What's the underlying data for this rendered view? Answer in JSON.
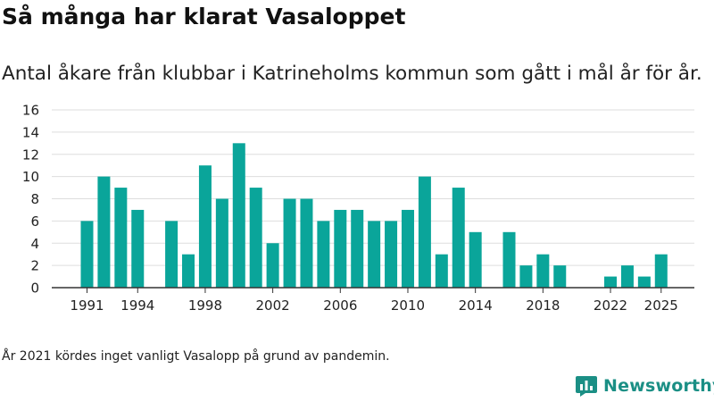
{
  "header": {
    "title": "Så många har klarat Vasaloppet",
    "subtitle": "Antal åkare från klubbar i Katrineholms kommun som gått i mål år för år."
  },
  "footer": {
    "note": "År 2021 kördes inget vanligt Vasalopp på grund av pandemin.",
    "brand": "Newsworthy",
    "brand_icon": "bar-chart-logo-icon"
  },
  "colors": {
    "bar": "#0aa59a",
    "grid": "#dddddd",
    "axis": "#333333",
    "brand": "#1b8f85"
  },
  "chart_data": {
    "type": "bar",
    "title": "Så många har klarat Vasaloppet",
    "xlabel": "",
    "ylabel": "",
    "ylim": [
      0,
      16
    ],
    "yticks": [
      0,
      2,
      4,
      6,
      8,
      10,
      12,
      14,
      16
    ],
    "xticks": [
      1991,
      1994,
      1998,
      2002,
      2006,
      2010,
      2014,
      2018,
      2022,
      2025
    ],
    "grid": true,
    "categories": [
      1991,
      1992,
      1993,
      1994,
      1995,
      1996,
      1997,
      1998,
      1999,
      2000,
      2001,
      2002,
      2003,
      2004,
      2005,
      2006,
      2007,
      2008,
      2009,
      2010,
      2011,
      2012,
      2013,
      2014,
      2015,
      2016,
      2017,
      2018,
      2019,
      2020,
      2021,
      2022,
      2023,
      2024,
      2025
    ],
    "values": [
      6,
      10,
      9,
      7,
      null,
      6,
      3,
      11,
      8,
      13,
      9,
      4,
      8,
      8,
      6,
      7,
      7,
      6,
      6,
      7,
      10,
      3,
      9,
      5,
      null,
      5,
      2,
      3,
      2,
      null,
      null,
      1,
      2,
      1,
      3
    ]
  }
}
